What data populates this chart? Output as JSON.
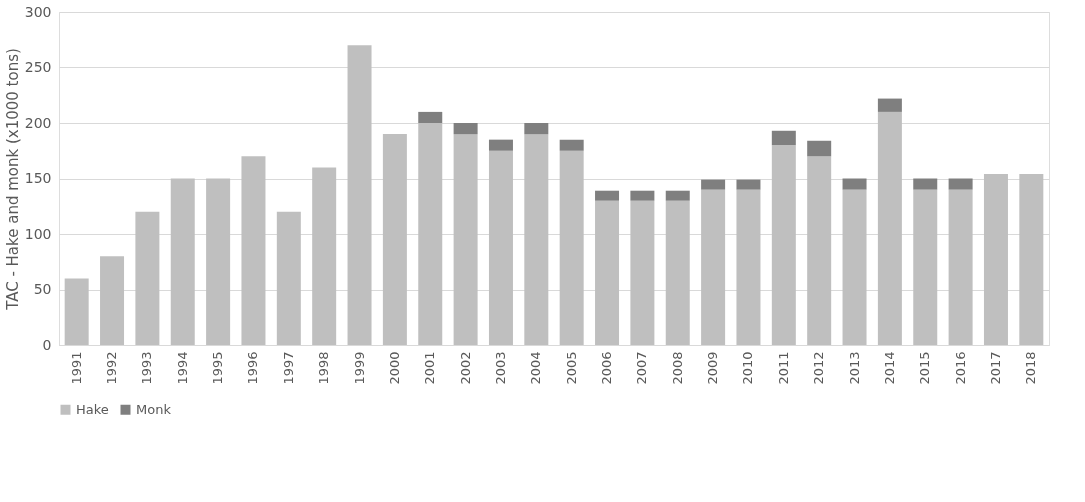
{
  "chart_data": {
    "type": "bar",
    "stacked": true,
    "ylabel": "TAC - Hake and monk (x1000 tons)",
    "categories": [
      "1991",
      "1992",
      "1993",
      "1994",
      "1995",
      "1996",
      "1997",
      "1998",
      "1999",
      "2000",
      "2001",
      "2002",
      "2003",
      "2004",
      "2005",
      "2006",
      "2007",
      "2008",
      "2009",
      "2010",
      "2011",
      "2012",
      "2013",
      "2014",
      "2015",
      "2016",
      "2017",
      "2018"
    ],
    "series": [
      {
        "name": "Hake",
        "color": "#bfbfbf",
        "values": [
          60,
          80,
          120,
          150,
          150,
          170,
          120,
          160,
          270,
          190,
          200,
          190,
          175,
          190,
          175,
          130,
          130,
          130,
          140,
          140,
          180,
          170,
          140,
          210,
          140,
          140,
          154,
          154
        ]
      },
      {
        "name": "Monk",
        "color": "#7f7f7f",
        "values": [
          null,
          null,
          null,
          null,
          null,
          null,
          null,
          null,
          null,
          null,
          10,
          10,
          10,
          10,
          10,
          9,
          9,
          9,
          9,
          9,
          13,
          14,
          10,
          12,
          10,
          10,
          null,
          null
        ]
      }
    ],
    "ylim": [
      0,
      300
    ],
    "yticks": [
      0,
      50,
      100,
      150,
      200,
      250,
      300
    ],
    "grid": "y",
    "legend": "bottom"
  }
}
